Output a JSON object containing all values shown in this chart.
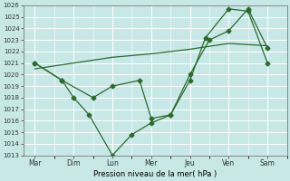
{
  "xlabel": "Pression niveau de la mer( hPa )",
  "x_labels": [
    "Mar",
    "Dim",
    "Lun",
    "Mer",
    "Jeu",
    "Ven",
    "Sam"
  ],
  "x_positions": [
    0,
    1,
    2,
    3,
    4,
    5,
    6
  ],
  "ylim": [
    1013,
    1026
  ],
  "yticks": [
    1013,
    1014,
    1015,
    1016,
    1017,
    1018,
    1019,
    1020,
    1021,
    1022,
    1023,
    1024,
    1025,
    1026
  ],
  "line_color": "#2d6a2d",
  "bg_color": "#c8e8e8",
  "grid_color": "#b0d8d8",
  "series": [
    {
      "x": [
        0,
        0.7,
        1,
        1.4,
        2,
        2.5,
        3,
        3.5,
        4,
        4.4,
        5,
        5.5,
        6
      ],
      "y": [
        1021.0,
        1019.5,
        1018.0,
        1016.5,
        1013.0,
        1014.8,
        1015.8,
        1016.5,
        1019.5,
        1023.2,
        1025.7,
        1025.5,
        1021.0
      ],
      "marker": true
    },
    {
      "x": [
        0,
        0.7,
        1.5,
        2,
        2.7,
        3,
        3.5,
        4,
        4.5,
        5,
        5.5,
        6
      ],
      "y": [
        1021.0,
        1019.5,
        1018.0,
        1019.0,
        1019.5,
        1016.2,
        1016.5,
        1020.0,
        1023.0,
        1023.8,
        1025.7,
        1022.3
      ],
      "marker": true
    },
    {
      "x": [
        0,
        1,
        2,
        3,
        4,
        5,
        6
      ],
      "y": [
        1020.5,
        1021.0,
        1021.5,
        1021.8,
        1022.2,
        1022.7,
        1022.5
      ],
      "marker": false
    }
  ]
}
